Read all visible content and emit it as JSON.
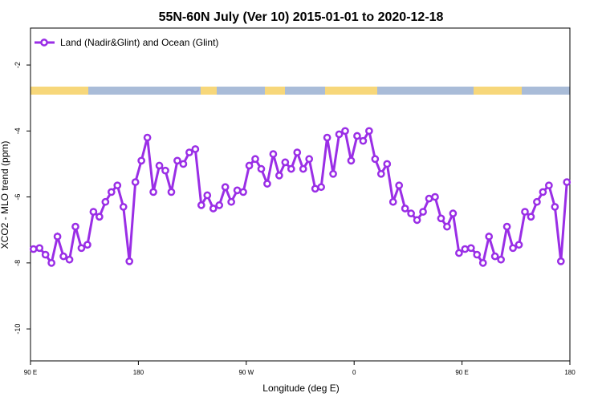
{
  "chart_data": {
    "type": "line",
    "title": "55N-60N July (Ver 10)   2015-01-01 to 2020-12-18",
    "x_label": "Longitude (deg E)",
    "y_label": "XCO2 - MLO trend (ppm)",
    "xlim": [
      90,
      540
    ],
    "ylim": [
      -10.97,
      -0.88
    ],
    "xticks": [
      {
        "value": 90,
        "label": "90 E"
      },
      180,
      {
        "value": 270,
        "label": "90 W"
      },
      {
        "value": 360,
        "label": "0"
      },
      {
        "value": 450,
        "label": "90 E"
      },
      {
        "value": 540,
        "label": "180"
      }
    ],
    "yticks": [
      -2,
      -4,
      -6,
      -8,
      -10
    ],
    "legend": "top-left",
    "x": [
      92.5,
      97.5,
      102.5,
      107.5,
      112.5,
      117.5,
      122.5,
      127.5,
      132.5,
      137.5,
      142.5,
      147.5,
      152.5,
      157.5,
      162.5,
      167.5,
      172.5,
      177.5,
      182.5,
      187.5,
      192.5,
      197.5,
      202.5,
      207.5,
      212.5,
      217.5,
      222.5,
      227.5,
      232.5,
      237.5,
      242.5,
      247.5,
      252.5,
      257.5,
      262.5,
      267.5,
      272.5,
      277.5,
      282.5,
      287.5,
      292.5,
      297.5,
      302.5,
      307.5,
      312.5,
      317.5,
      322.5,
      327.5,
      332.5,
      337.5,
      342.5,
      347.5,
      352.5,
      357.5,
      362.5,
      367.5,
      372.5,
      377.5,
      382.5,
      387.5,
      392.5,
      397.5,
      402.5,
      407.5,
      412.5,
      417.5,
      422.5,
      427.5,
      432.5,
      437.5,
      442.5,
      447.5,
      452.5,
      457.5,
      462.5,
      467.5,
      472.5,
      477.5,
      482.5,
      487.5,
      492.5,
      497.5,
      502.5,
      507.5,
      512.5,
      517.5,
      522.5,
      527.5,
      532.5,
      537.5
    ],
    "series": [
      {
        "name": "Land (Nadir&Glint) and Ocean (Glint)",
        "color": "#9a2ee6",
        "values": [
          -7.58,
          -7.55,
          -7.75,
          -8.0,
          -7.2,
          -7.8,
          -7.9,
          -6.9,
          -7.55,
          -7.45,
          -6.45,
          -6.6,
          -6.15,
          -5.85,
          -5.65,
          -6.3,
          -7.95,
          -5.55,
          -4.9,
          -4.2,
          -5.85,
          -5.05,
          -5.2,
          -5.85,
          -4.9,
          -5.0,
          -4.65,
          -4.55,
          -6.25,
          -5.95,
          -6.35,
          -6.25,
          -5.7,
          -6.15,
          -5.8,
          -5.85,
          -5.05,
          -4.85,
          -5.15,
          -5.6,
          -4.7,
          -5.35,
          -4.95,
          -5.15,
          -4.65,
          -5.15,
          -4.85,
          -5.75,
          -5.7,
          -4.2,
          -5.3,
          -4.1,
          -4.0,
          -4.9,
          -4.15,
          -4.3,
          -4.0,
          -4.85,
          -5.3,
          -5.0,
          -6.15,
          -5.65,
          -6.35,
          -6.5,
          -6.7,
          -6.45,
          -6.05,
          -6.0,
          -6.65,
          -6.9,
          -6.5,
          -7.7,
          -7.58,
          -7.55,
          -7.75,
          -8.0,
          -7.2,
          -7.8,
          -7.9,
          -6.9,
          -7.55,
          -7.45,
          -6.45,
          -6.6,
          -6.15,
          -5.85,
          -5.65,
          -6.3,
          -7.95,
          -5.55
        ]
      }
    ]
  }
}
